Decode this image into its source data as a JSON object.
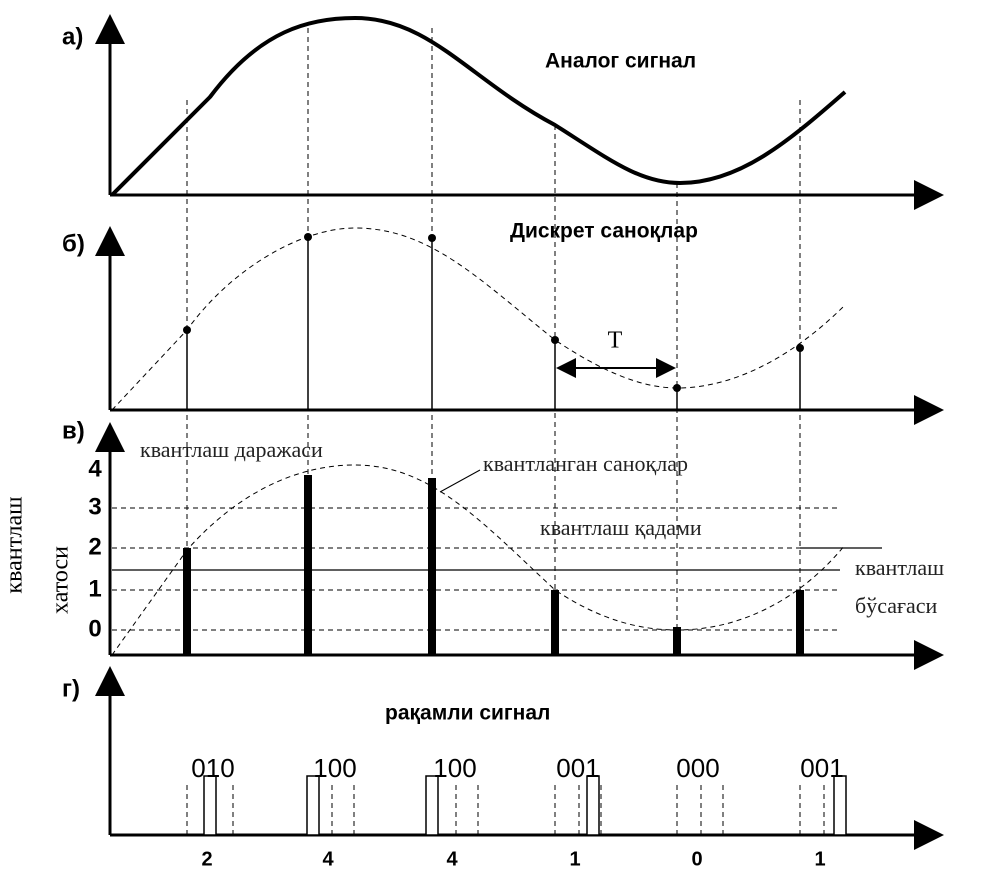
{
  "panels": [
    {
      "letter": "а)",
      "title": "Аналог сигнал"
    },
    {
      "letter": "б)",
      "title": "Дискрет саноқлар",
      "period": "T"
    },
    {
      "letter": "в)",
      "levels": [
        "4",
        "3",
        "2",
        "1",
        "0"
      ],
      "axis_label": [
        "квантлаш",
        "хатоси"
      ],
      "labels": {
        "level": "квантлаш даражаси",
        "samples": "квантланган саноқлар",
        "step": "квантлаш қадами",
        "threshold": [
          "квантлаш",
          "бўсағаси"
        ]
      }
    },
    {
      "letter": "г)",
      "title": "рақамли сигнал",
      "codes": [
        "010",
        "100",
        "100",
        "001",
        "000",
        "001"
      ],
      "values": [
        "2",
        "4",
        "4",
        "1",
        "0",
        "1"
      ]
    }
  ]
}
